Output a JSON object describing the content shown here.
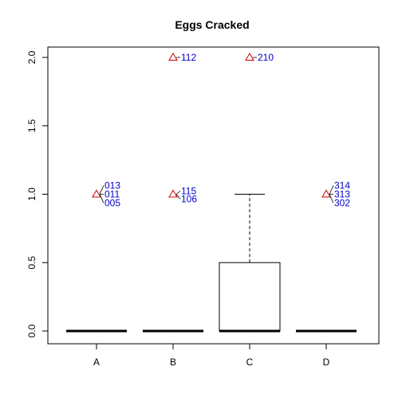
{
  "chart_data": {
    "type": "box",
    "title": "Eggs Cracked",
    "xlabel": "",
    "ylabel": "",
    "ylim": [
      -0.03,
      2.05
    ],
    "yticks": [
      "0.0",
      "0.5",
      "1.0",
      "1.5",
      "2.0"
    ],
    "ytick_values": [
      0,
      0.5,
      1.0,
      1.5,
      2.0
    ],
    "categories": [
      "A",
      "B",
      "C",
      "D"
    ],
    "boxes": [
      {
        "category": "A",
        "min": 0,
        "q1": 0,
        "median": 0,
        "q3": 0,
        "max": 0
      },
      {
        "category": "B",
        "min": 0,
        "q1": 0,
        "median": 0,
        "q3": 0,
        "max": 0
      },
      {
        "category": "C",
        "min": 0,
        "q1": 0,
        "median": 0,
        "q3": 0.5,
        "max": 1.0
      },
      {
        "category": "D",
        "min": 0,
        "q1": 0,
        "median": 0,
        "q3": 0,
        "max": 0
      }
    ],
    "outliers": [
      {
        "category": "A",
        "value": 1.0,
        "labels": [
          "013",
          "011",
          "005"
        ]
      },
      {
        "category": "B",
        "value": 2.0,
        "labels": [
          "112"
        ]
      },
      {
        "category": "B",
        "value": 1.0,
        "labels": [
          "115",
          "106"
        ]
      },
      {
        "category": "C",
        "value": 2.0,
        "labels": [
          "210"
        ]
      },
      {
        "category": "D",
        "value": 1.0,
        "labels": [
          "314",
          "313",
          "302"
        ]
      }
    ],
    "colors": {
      "outlier_marker": "#cc0000",
      "outlier_label": "#0000cc",
      "box": "#000000"
    },
    "grid": false,
    "legend": "none"
  }
}
